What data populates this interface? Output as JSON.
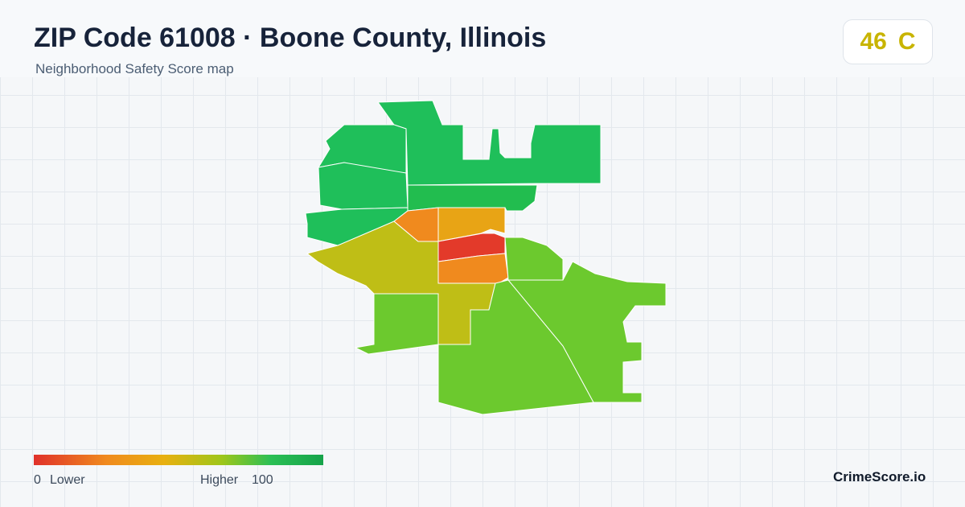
{
  "header": {
    "title": "ZIP Code 61008 · Boone County, Illinois",
    "subtitle": "Neighborhood Safety Score map"
  },
  "score": {
    "value": 46,
    "grade": "C"
  },
  "legend": {
    "min": 0,
    "min_label": "Lower",
    "max_label": "Higher",
    "max": 100
  },
  "brand": "CrimeScore.io"
}
